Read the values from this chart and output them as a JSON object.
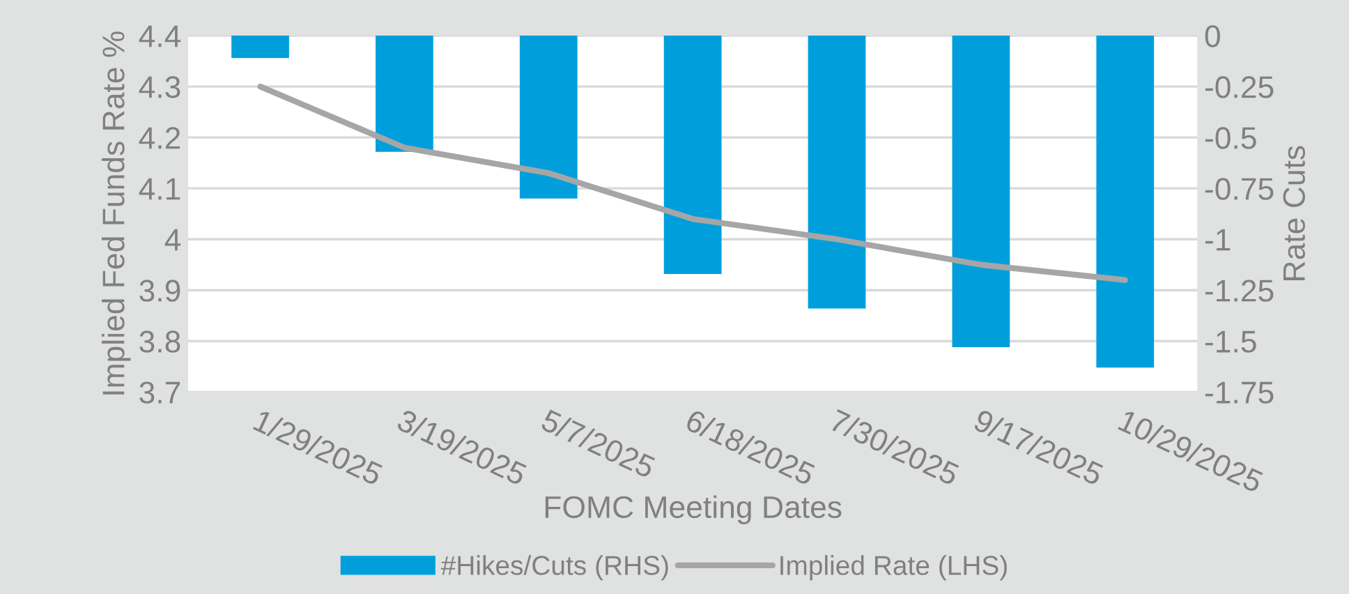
{
  "chart_data": {
    "type": "bar",
    "xlabel": "FOMC Meeting Dates",
    "ylabel": "Implied Fed Funds Rate %",
    "y2label": "Rate Cuts",
    "categories": [
      "1/29/2025",
      "3/19/2025",
      "5/7/2025",
      "6/18/2025",
      "7/30/2025",
      "9/17/2025",
      "10/29/2025"
    ],
    "series": [
      {
        "name": "#Hikes/Cuts (RHS)",
        "axis": "y2",
        "color": "#009fdc",
        "values": [
          -0.11,
          -0.57,
          -0.8,
          -1.17,
          -1.34,
          -1.53,
          -1.63
        ]
      },
      {
        "name": "Implied Rate (LHS)",
        "type": "line",
        "color": "#a6a6a6",
        "values": [
          4.3,
          4.18,
          4.13,
          4.04,
          4.0,
          3.95,
          3.92
        ]
      }
    ],
    "ylim": [
      3.7,
      4.4
    ],
    "yticks": [
      3.7,
      3.8,
      3.9,
      {
        "value": 4.0,
        "label": "4"
      },
      4.1,
      4.2,
      4.3,
      4.4
    ],
    "y2lim": [
      -1.75,
      0
    ],
    "y2ticks": [
      -1.75,
      -1.5,
      -1.25,
      {
        "value": -1.0,
        "label": "-1"
      },
      -0.75,
      -0.5,
      -0.25,
      0
    ],
    "grid": "y",
    "legend": "bottom"
  }
}
